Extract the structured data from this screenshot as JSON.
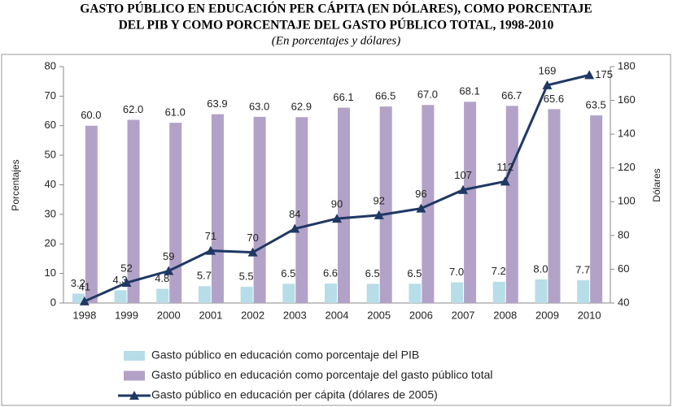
{
  "chart_data": {
    "type": "bar-line",
    "title": [
      "GASTO PÚBLICO EN EDUCACIÓN PER CÁPITA (EN DÓLARES), COMO PORCENTAJE",
      "DEL PIB Y COMO PORCENTAJE DEL GASTO PÚBLICO TOTAL, 1998-2010"
    ],
    "subtitle": "(En porcentajes y dólares)",
    "y_label": "Porcentajes",
    "y2_label": "Dólares",
    "categories": [
      "1998",
      "1999",
      "2000",
      "2001",
      "2002",
      "2003",
      "2004",
      "2005",
      "2006",
      "2007",
      "2008",
      "2009",
      "2010"
    ],
    "series": [
      {
        "name": "Gasto público en educación como porcentaje del PIB",
        "color": "#b7dde8",
        "type": "bar",
        "values": [
          3.2,
          4.3,
          4.8,
          5.7,
          5.5,
          6.5,
          6.6,
          6.5,
          6.5,
          7.0,
          7.2,
          8.0,
          7.7
        ],
        "value_labels": [
          "3.2",
          "4.3",
          "4.8",
          "5.7",
          "5.5",
          "6.5",
          "6.6",
          "6.5",
          "6.5",
          "7.0",
          "7.2",
          "8.0",
          "7.7"
        ]
      },
      {
        "name": "Gasto público en educación como porcentaje del gasto público total",
        "color": "#b3a2c7",
        "type": "bar",
        "values": [
          60.0,
          62.0,
          61.0,
          63.9,
          63.0,
          62.9,
          66.1,
          66.5,
          67.0,
          68.1,
          66.7,
          65.6,
          63.5
        ],
        "value_labels": [
          "60.0",
          "62.0",
          "61.0",
          "63.9",
          "63.0",
          "62.9",
          "66.1",
          "66.5",
          "67.0",
          "68.1",
          "66.7",
          "65.6",
          "63.5"
        ]
      },
      {
        "name": "Gasto público en educación per cápita (dólares de 2005)",
        "color": "#1f3864",
        "type": "line",
        "axis": "y2",
        "values": [
          41,
          52,
          59,
          71,
          70,
          84,
          90,
          92,
          96,
          107,
          112,
          169,
          175
        ]
      }
    ],
    "ylim": [
      0,
      80
    ],
    "yticks": [
      0,
      10,
      20,
      30,
      40,
      50,
      60,
      70,
      80
    ],
    "y2lim": [
      40,
      180
    ],
    "y2ticks": [
      40,
      60,
      80,
      100,
      120,
      140,
      160,
      180
    ]
  }
}
